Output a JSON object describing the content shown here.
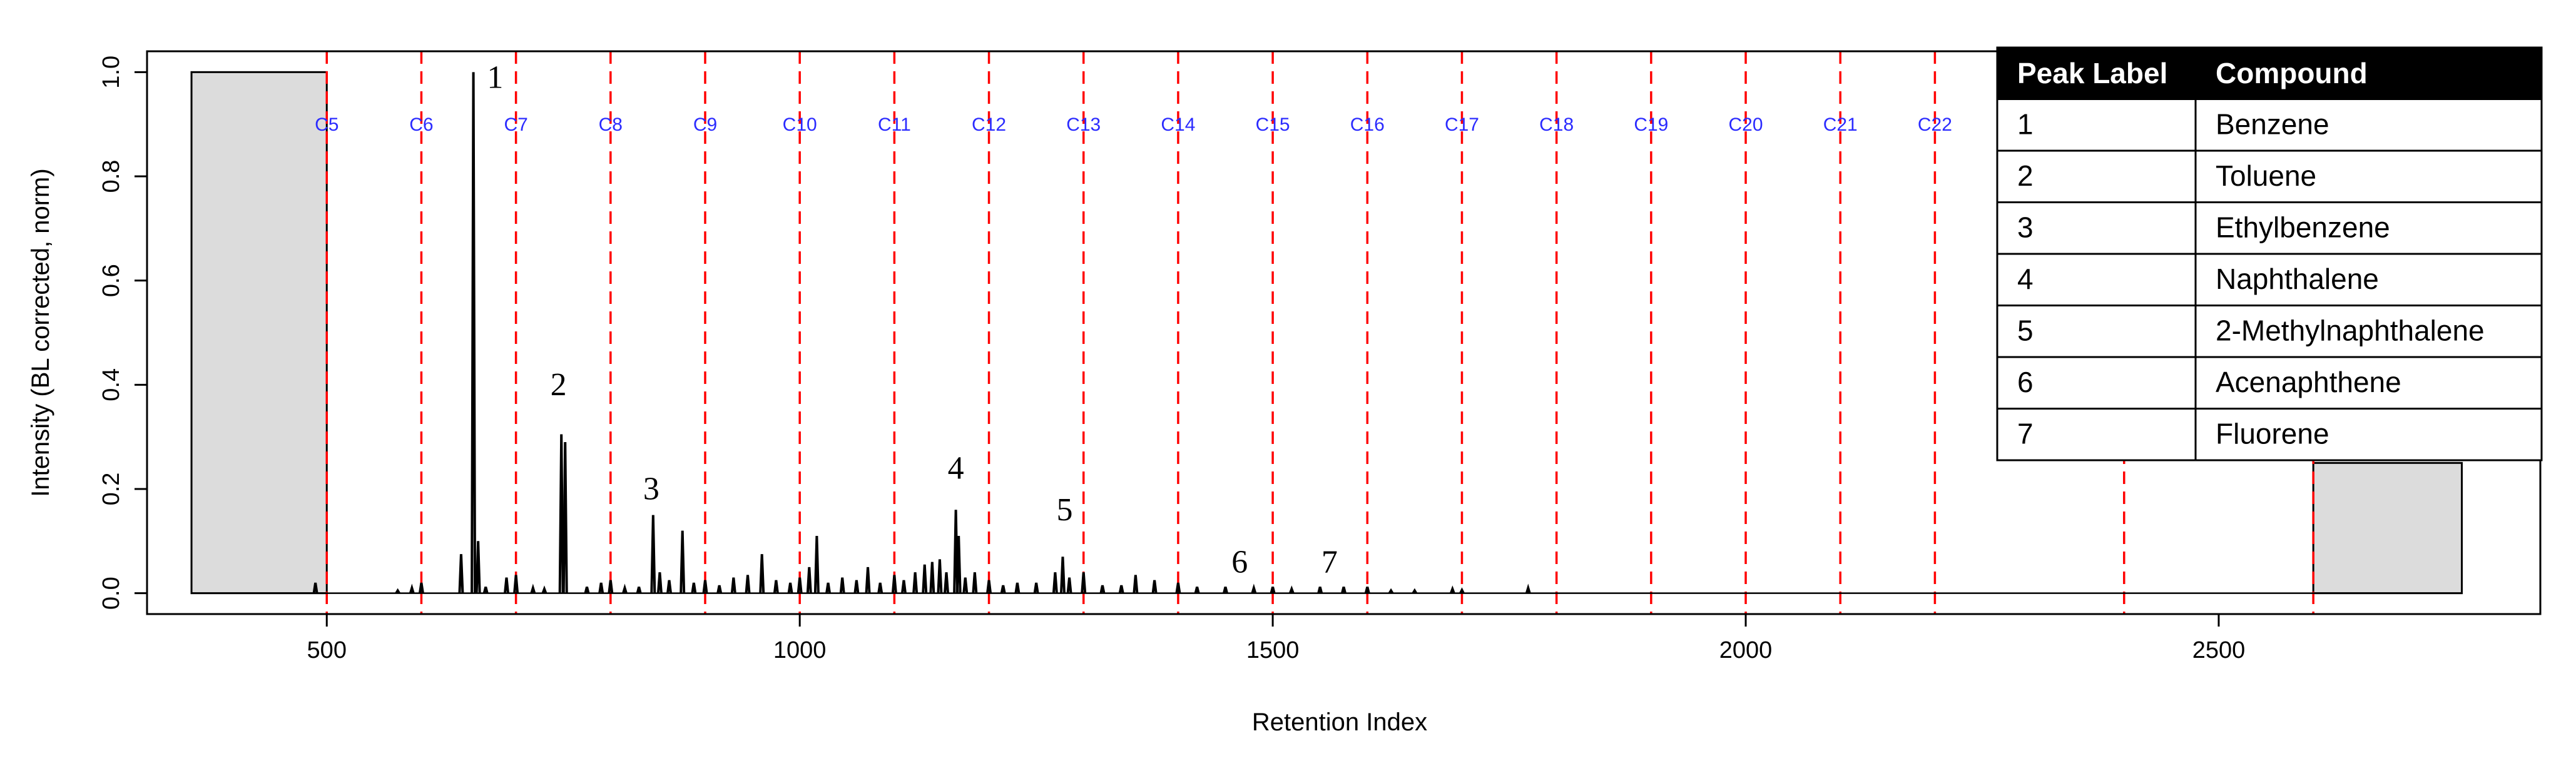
{
  "chart_data": {
    "type": "line",
    "xlabel": "Retention Index",
    "ylabel": "Intensity (BL corrected, norm)",
    "xlim": [
      310,
      2840
    ],
    "ylim": [
      -0.04,
      1.04
    ],
    "x_ticks": [
      500,
      1000,
      1500,
      2000,
      2500
    ],
    "x_tick_labels": [
      "500",
      "1000",
      "1500",
      "2000",
      "2500"
    ],
    "y_ticks": [
      0.0,
      0.2,
      0.4,
      0.6,
      0.8,
      1.0
    ],
    "y_tick_labels": [
      "0.0",
      "0.2",
      "0.4",
      "0.6",
      "0.8",
      "1.0"
    ],
    "excluded_regions": [
      {
        "x": [
          357,
          500
        ],
        "y": [
          0,
          1.0
        ]
      },
      {
        "x": [
          2600,
          2757
        ],
        "y": [
          0,
          0.25
        ]
      }
    ],
    "baseline": {
      "x": [
        357,
        2757
      ],
      "y": 0.0
    },
    "alkane_markers": [
      {
        "label": "C5",
        "x": 500
      },
      {
        "label": "C6",
        "x": 600
      },
      {
        "label": "C7",
        "x": 700
      },
      {
        "label": "C8",
        "x": 800
      },
      {
        "label": "C9",
        "x": 900
      },
      {
        "label": "C10",
        "x": 1000
      },
      {
        "label": "C11",
        "x": 1100
      },
      {
        "label": "C12",
        "x": 1200
      },
      {
        "label": "C13",
        "x": 1300
      },
      {
        "label": "C14",
        "x": 1400
      },
      {
        "label": "C15",
        "x": 1500
      },
      {
        "label": "C16",
        "x": 1600
      },
      {
        "label": "C17",
        "x": 1700
      },
      {
        "label": "C18",
        "x": 1800
      },
      {
        "label": "C19",
        "x": 1900
      },
      {
        "label": "C20",
        "x": 2000
      },
      {
        "label": "C21",
        "x": 2100
      },
      {
        "label": "C22",
        "x": 2200
      },
      {
        "label": "",
        "x": 2400
      },
      {
        "label": "",
        "x": 2600
      }
    ],
    "peaks": [
      {
        "x": 488,
        "y": 0.02
      },
      {
        "x": 575,
        "y": 0.005
      },
      {
        "x": 590,
        "y": 0.01
      },
      {
        "x": 600,
        "y": 0.02
      },
      {
        "x": 642,
        "y": 0.075
      },
      {
        "x": 655,
        "y": 1.0
      },
      {
        "x": 660,
        "y": 0.1
      },
      {
        "x": 668,
        "y": 0.012
      },
      {
        "x": 690,
        "y": 0.03
      },
      {
        "x": 700,
        "y": 0.035
      },
      {
        "x": 718,
        "y": 0.01
      },
      {
        "x": 730,
        "y": 0.008
      },
      {
        "x": 748,
        "y": 0.305
      },
      {
        "x": 752,
        "y": 0.29
      },
      {
        "x": 775,
        "y": 0.012
      },
      {
        "x": 790,
        "y": 0.02
      },
      {
        "x": 800,
        "y": 0.025
      },
      {
        "x": 815,
        "y": 0.01
      },
      {
        "x": 830,
        "y": 0.012
      },
      {
        "x": 845,
        "y": 0.15
      },
      {
        "x": 852,
        "y": 0.04
      },
      {
        "x": 862,
        "y": 0.025
      },
      {
        "x": 876,
        "y": 0.12
      },
      {
        "x": 888,
        "y": 0.02
      },
      {
        "x": 900,
        "y": 0.025
      },
      {
        "x": 915,
        "y": 0.015
      },
      {
        "x": 930,
        "y": 0.03
      },
      {
        "x": 945,
        "y": 0.035
      },
      {
        "x": 960,
        "y": 0.075
      },
      {
        "x": 975,
        "y": 0.025
      },
      {
        "x": 990,
        "y": 0.02
      },
      {
        "x": 1000,
        "y": 0.03
      },
      {
        "x": 1010,
        "y": 0.05
      },
      {
        "x": 1018,
        "y": 0.11
      },
      {
        "x": 1030,
        "y": 0.02
      },
      {
        "x": 1045,
        "y": 0.03
      },
      {
        "x": 1060,
        "y": 0.025
      },
      {
        "x": 1072,
        "y": 0.05
      },
      {
        "x": 1085,
        "y": 0.02
      },
      {
        "x": 1100,
        "y": 0.035
      },
      {
        "x": 1110,
        "y": 0.025
      },
      {
        "x": 1122,
        "y": 0.04
      },
      {
        "x": 1132,
        "y": 0.055
      },
      {
        "x": 1140,
        "y": 0.06
      },
      {
        "x": 1148,
        "y": 0.065
      },
      {
        "x": 1155,
        "y": 0.04
      },
      {
        "x": 1165,
        "y": 0.16
      },
      {
        "x": 1168,
        "y": 0.11
      },
      {
        "x": 1175,
        "y": 0.03
      },
      {
        "x": 1185,
        "y": 0.04
      },
      {
        "x": 1200,
        "y": 0.025
      },
      {
        "x": 1215,
        "y": 0.015
      },
      {
        "x": 1230,
        "y": 0.02
      },
      {
        "x": 1250,
        "y": 0.02
      },
      {
        "x": 1270,
        "y": 0.04
      },
      {
        "x": 1278,
        "y": 0.07
      },
      {
        "x": 1285,
        "y": 0.03
      },
      {
        "x": 1300,
        "y": 0.04
      },
      {
        "x": 1320,
        "y": 0.015
      },
      {
        "x": 1340,
        "y": 0.015
      },
      {
        "x": 1355,
        "y": 0.035
      },
      {
        "x": 1375,
        "y": 0.025
      },
      {
        "x": 1400,
        "y": 0.02
      },
      {
        "x": 1420,
        "y": 0.012
      },
      {
        "x": 1450,
        "y": 0.012
      },
      {
        "x": 1480,
        "y": 0.01
      },
      {
        "x": 1500,
        "y": 0.012
      },
      {
        "x": 1520,
        "y": 0.008
      },
      {
        "x": 1550,
        "y": 0.012
      },
      {
        "x": 1575,
        "y": 0.012
      },
      {
        "x": 1600,
        "y": 0.012
      },
      {
        "x": 1625,
        "y": 0.005
      },
      {
        "x": 1650,
        "y": 0.005
      },
      {
        "x": 1690,
        "y": 0.008
      },
      {
        "x": 1700,
        "y": 0.006
      },
      {
        "x": 1770,
        "y": 0.01
      }
    ],
    "peak_labels": [
      {
        "label": "1",
        "x": 678,
        "y": 0.97
      },
      {
        "label": "2",
        "x": 745,
        "y": 0.38
      },
      {
        "label": "3",
        "x": 843,
        "y": 0.18
      },
      {
        "label": "4",
        "x": 1165,
        "y": 0.22
      },
      {
        "label": "5",
        "x": 1280,
        "y": 0.14
      },
      {
        "label": "6",
        "x": 1465,
        "y": 0.04
      },
      {
        "label": "7",
        "x": 1560,
        "y": 0.04
      }
    ],
    "colors": {
      "line": "#000000",
      "marker_line": "#ff0000",
      "marker_label": "#2b2bff",
      "shade": "#dcdcdc"
    }
  },
  "legend_table": {
    "headers": [
      "Peak Label",
      "Compound"
    ],
    "rows": [
      [
        "1",
        "Benzene"
      ],
      [
        "2",
        "Toluene"
      ],
      [
        "3",
        "Ethylbenzene"
      ],
      [
        "4",
        "Naphthalene"
      ],
      [
        "5",
        "2-Methylnaphthalene"
      ],
      [
        "6",
        "Acenaphthene"
      ],
      [
        "7",
        "Fluorene"
      ]
    ]
  }
}
